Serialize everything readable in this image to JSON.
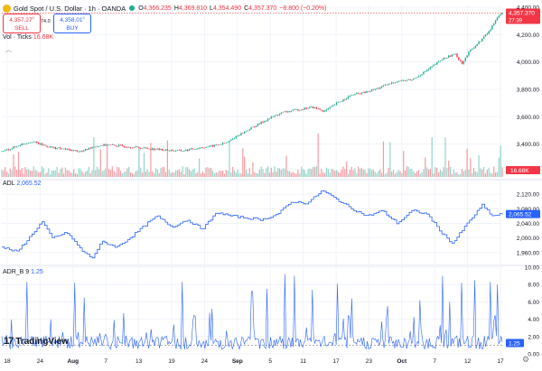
{
  "header": {
    "title": "Gold Spot / U.S. Dollar · 1h · OANDA",
    "ohlc": [
      {
        "k": "O",
        "v": "4,366.235"
      },
      {
        "k": "H",
        "v": "4,369.810"
      },
      {
        "k": "L",
        "v": "4,354.490"
      },
      {
        "k": "C",
        "v": "4,357.370"
      }
    ],
    "change": "−8.800 (−0.20%)",
    "sell_price": "4,357.27",
    "sell_sup": "0",
    "sell_label": "SELL",
    "spread": "74.0",
    "buy_price": "4,358.01",
    "buy_sup": "0",
    "buy_label": "BUY",
    "vol_label": "Vol · Ticks",
    "vol_value": "16.68K",
    "adl_label": "ADL",
    "adl_value": "2,065.52",
    "adr_label": "ADR_B",
    "adr_param": "9",
    "adr_value": "1.25",
    "brand": "TradingView"
  },
  "colors": {
    "up": "#22ab94",
    "down": "#f23645",
    "line": "#2962ff",
    "grid": "#f0f3fa",
    "axis_text": "#131722",
    "last_price_bg": "#f23645"
  },
  "chart_data": [
    {
      "type": "candlestick",
      "title": "Gold Spot / U.S. Dollar · 1h · OANDA",
      "ylim": [
        3160,
        4400
      ],
      "y_ticks": [
        3400,
        3600,
        3800,
        4000,
        4200,
        4400
      ],
      "y_tick_labels": [
        "3,400.00",
        "3,600.00",
        "3,800.00",
        "4,000.00",
        "4,200.00",
        "4,400.00"
      ],
      "x_ticks": [
        "18",
        "24",
        "Aug",
        "7",
        "13",
        "19",
        "24",
        "Sep",
        "5",
        "11",
        "17",
        "23",
        "Oct",
        "7",
        "12",
        "17"
      ],
      "last_price": "4,357.370",
      "countdown": "27:39",
      "price_path": [
        {
          "t": 0.0,
          "p": 3345
        },
        {
          "t": 0.02,
          "p": 3370
        },
        {
          "t": 0.04,
          "p": 3400
        },
        {
          "t": 0.06,
          "p": 3420
        },
        {
          "t": 0.08,
          "p": 3395
        },
        {
          "t": 0.1,
          "p": 3375
        },
        {
          "t": 0.13,
          "p": 3360
        },
        {
          "t": 0.16,
          "p": 3345
        },
        {
          "t": 0.18,
          "p": 3380
        },
        {
          "t": 0.21,
          "p": 3395
        },
        {
          "t": 0.24,
          "p": 3385
        },
        {
          "t": 0.27,
          "p": 3375
        },
        {
          "t": 0.3,
          "p": 3365
        },
        {
          "t": 0.33,
          "p": 3355
        },
        {
          "t": 0.36,
          "p": 3350
        },
        {
          "t": 0.39,
          "p": 3370
        },
        {
          "t": 0.42,
          "p": 3385
        },
        {
          "t": 0.45,
          "p": 3410
        },
        {
          "t": 0.47,
          "p": 3460
        },
        {
          "t": 0.5,
          "p": 3520
        },
        {
          "t": 0.53,
          "p": 3580
        },
        {
          "t": 0.56,
          "p": 3630
        },
        {
          "t": 0.59,
          "p": 3650
        },
        {
          "t": 0.62,
          "p": 3670
        },
        {
          "t": 0.645,
          "p": 3640
        },
        {
          "t": 0.67,
          "p": 3700
        },
        {
          "t": 0.7,
          "p": 3760
        },
        {
          "t": 0.73,
          "p": 3780
        },
        {
          "t": 0.76,
          "p": 3820
        },
        {
          "t": 0.79,
          "p": 3860
        },
        {
          "t": 0.82,
          "p": 3870
        },
        {
          "t": 0.85,
          "p": 3940
        },
        {
          "t": 0.88,
          "p": 4020
        },
        {
          "t": 0.905,
          "p": 4060
        },
        {
          "t": 0.92,
          "p": 3990
        },
        {
          "t": 0.935,
          "p": 4080
        },
        {
          "t": 0.955,
          "p": 4150
        },
        {
          "t": 0.975,
          "p": 4230
        },
        {
          "t": 0.99,
          "p": 4330
        },
        {
          "t": 1.0,
          "p": 4357
        }
      ],
      "volume_last": "16.68K"
    },
    {
      "type": "line",
      "name": "ADL",
      "ylim": [
        1930,
        2140
      ],
      "y_ticks": [
        1960,
        2000,
        2040,
        2080,
        2120
      ],
      "y_tick_labels": [
        "1,960.00",
        "2,000.00",
        "2,040.00",
        "2,080.00",
        "2,120.00"
      ],
      "last_value": "2,065.52",
      "points": [
        {
          "t": 0.0,
          "v": 1975
        },
        {
          "t": 0.03,
          "v": 1962
        },
        {
          "t": 0.06,
          "v": 2010
        },
        {
          "t": 0.08,
          "v": 2045
        },
        {
          "t": 0.1,
          "v": 2000
        },
        {
          "t": 0.13,
          "v": 2015
        },
        {
          "t": 0.16,
          "v": 1965
        },
        {
          "t": 0.18,
          "v": 1945
        },
        {
          "t": 0.2,
          "v": 1990
        },
        {
          "t": 0.23,
          "v": 1975
        },
        {
          "t": 0.26,
          "v": 2005
        },
        {
          "t": 0.29,
          "v": 2040
        },
        {
          "t": 0.31,
          "v": 2060
        },
        {
          "t": 0.34,
          "v": 2030
        },
        {
          "t": 0.37,
          "v": 2050
        },
        {
          "t": 0.4,
          "v": 2025
        },
        {
          "t": 0.43,
          "v": 2070
        },
        {
          "t": 0.46,
          "v": 2060
        },
        {
          "t": 0.49,
          "v": 2055
        },
        {
          "t": 0.52,
          "v": 2050
        },
        {
          "t": 0.55,
          "v": 2065
        },
        {
          "t": 0.58,
          "v": 2100
        },
        {
          "t": 0.61,
          "v": 2095
        },
        {
          "t": 0.64,
          "v": 2130
        },
        {
          "t": 0.67,
          "v": 2105
        },
        {
          "t": 0.7,
          "v": 2080
        },
        {
          "t": 0.73,
          "v": 2060
        },
        {
          "t": 0.76,
          "v": 2075
        },
        {
          "t": 0.79,
          "v": 2040
        },
        {
          "t": 0.82,
          "v": 2075
        },
        {
          "t": 0.85,
          "v": 2065
        },
        {
          "t": 0.875,
          "v": 2020
        },
        {
          "t": 0.9,
          "v": 1985
        },
        {
          "t": 0.93,
          "v": 2040
        },
        {
          "t": 0.96,
          "v": 2090
        },
        {
          "t": 0.98,
          "v": 2060
        },
        {
          "t": 1.0,
          "v": 2066
        }
      ]
    },
    {
      "type": "line",
      "name": "ADR_B",
      "ylim": [
        0,
        10
      ],
      "y_ticks": [
        0,
        2,
        4,
        6,
        8,
        10
      ],
      "y_tick_labels": [
        "0.00",
        "2.00",
        "4.00",
        "6.00",
        "8.00",
        "10.00"
      ],
      "reference_line": 1.0,
      "last_value": "1.25",
      "spikes": [
        {
          "t": 0.05,
          "v": 8.3
        },
        {
          "t": 0.145,
          "v": 8.2
        },
        {
          "t": 0.165,
          "v": 6.5
        },
        {
          "t": 0.36,
          "v": 8.3
        },
        {
          "t": 0.42,
          "v": 5.2
        },
        {
          "t": 0.5,
          "v": 7.2
        },
        {
          "t": 0.53,
          "v": 7.5
        },
        {
          "t": 0.565,
          "v": 9.2
        },
        {
          "t": 0.585,
          "v": 9.0
        },
        {
          "t": 0.62,
          "v": 7.4
        },
        {
          "t": 0.67,
          "v": 8.1
        },
        {
          "t": 0.7,
          "v": 6.4
        },
        {
          "t": 0.77,
          "v": 5.5
        },
        {
          "t": 0.835,
          "v": 6.2
        },
        {
          "t": 0.88,
          "v": 9.0
        },
        {
          "t": 0.895,
          "v": 6.0
        },
        {
          "t": 0.92,
          "v": 8.2
        },
        {
          "t": 0.945,
          "v": 8.5
        },
        {
          "t": 0.975,
          "v": 8.3
        },
        {
          "t": 0.99,
          "v": 8.0
        }
      ]
    }
  ]
}
